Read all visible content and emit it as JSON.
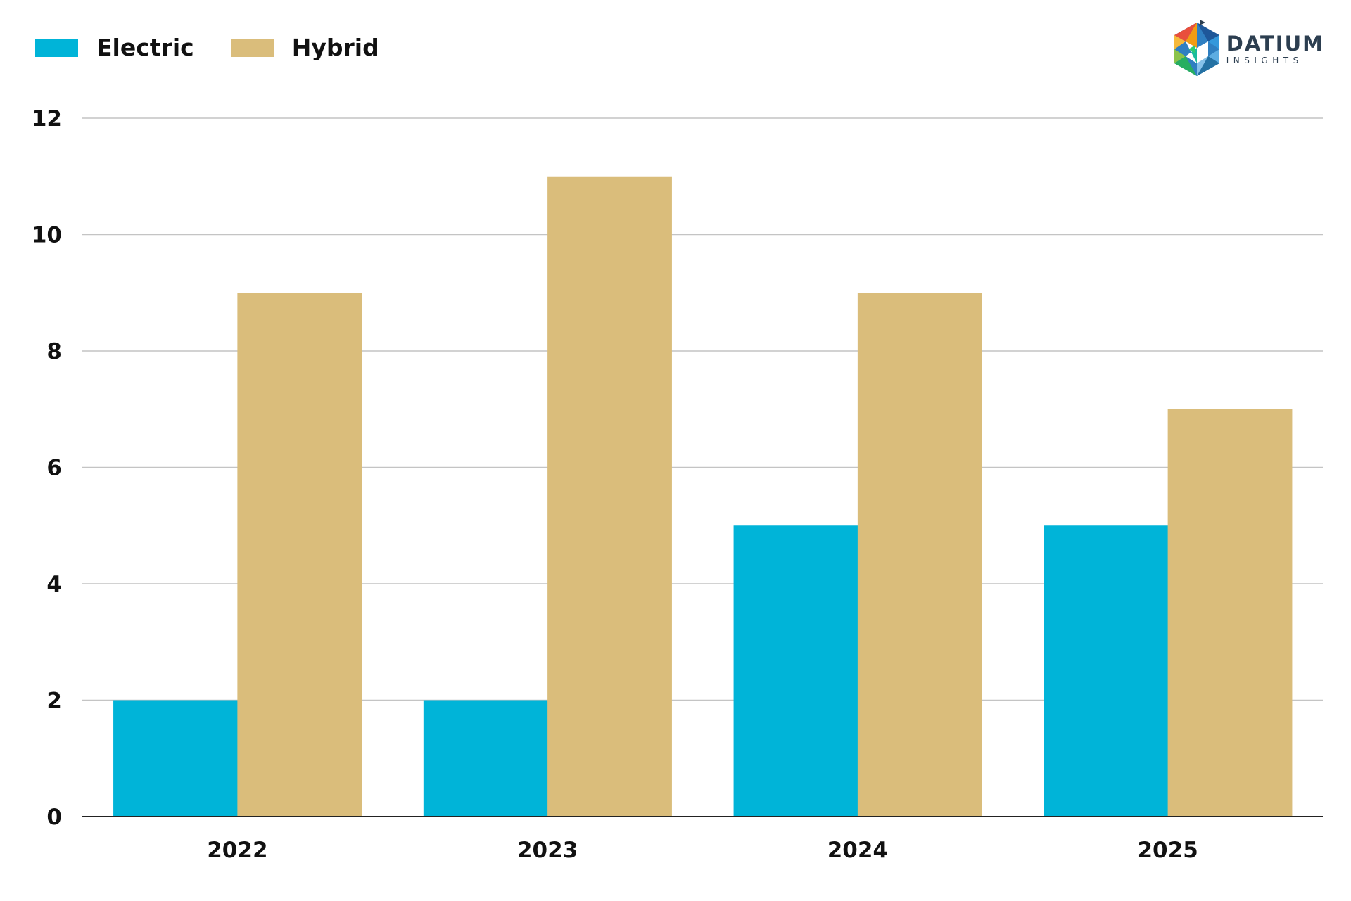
{
  "brand": {
    "name": "DATIUM",
    "sub": "INSIGHTS"
  },
  "chart_data": {
    "type": "bar",
    "categories": [
      "2022",
      "2023",
      "2024",
      "2025"
    ],
    "series": [
      {
        "name": "Electric",
        "values": [
          2,
          2,
          5,
          5
        ],
        "color": "#00b4d8"
      },
      {
        "name": "Hybrid",
        "values": [
          9,
          11,
          9,
          7
        ],
        "color": "#dabd7b"
      }
    ],
    "ylim": [
      0,
      12
    ],
    "yticks": [
      "0",
      "2",
      "4",
      "6",
      "8",
      "10",
      "12"
    ],
    "grid": true,
    "legend_position": "top-left",
    "title": "",
    "xlabel": "",
    "ylabel": ""
  }
}
